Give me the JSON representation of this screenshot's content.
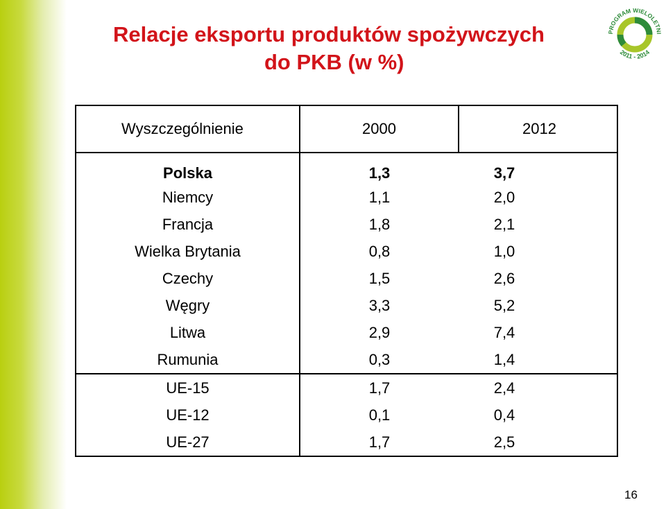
{
  "slide": {
    "title_line1": "Relacje eksportu produktów spożywczych",
    "title_line2": "do PKB (w %)",
    "page_number": "16"
  },
  "logo": {
    "text_top": "PROGRAM WIELOLETNI",
    "text_bottom": "2011 - 2014"
  },
  "table": {
    "headers": [
      "Wyszczególnienie",
      "2000",
      "2012"
    ],
    "rows": [
      {
        "label": "Polska",
        "y2000": "1,3",
        "y2012": "3,7"
      },
      {
        "label": "Niemcy",
        "y2000": "1,1",
        "y2012": "2,0"
      },
      {
        "label": "Francja",
        "y2000": "1,8",
        "y2012": "2,1"
      },
      {
        "label": "Wielka Brytania",
        "y2000": "0,8",
        "y2012": "1,0"
      },
      {
        "label": "Czechy",
        "y2000": "1,5",
        "y2012": "2,6"
      },
      {
        "label": "Węgry",
        "y2000": "3,3",
        "y2012": "5,2"
      },
      {
        "label": "Litwa",
        "y2000": "2,9",
        "y2012": "7,4"
      },
      {
        "label": "Rumunia",
        "y2000": "0,3",
        "y2012": "1,4"
      },
      {
        "label": "UE-15",
        "y2000": "1,7",
        "y2012": "2,4"
      },
      {
        "label": "UE-12",
        "y2000": "0,1",
        "y2012": "0,4"
      },
      {
        "label": "UE-27",
        "y2000": "1,7",
        "y2012": "2,5"
      }
    ]
  },
  "colors": {
    "title": "#d2141a",
    "band": "#b9cf10",
    "logo_green": "#2e8b3a",
    "logo_lime": "#a8c62a"
  }
}
